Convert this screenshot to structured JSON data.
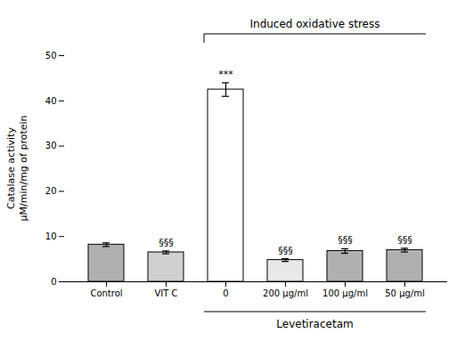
{
  "chart_data": {
    "type": "bar",
    "categories": [
      "Control",
      "VIT C",
      "0",
      "200 μg/ml",
      "100 μg/ml",
      "50 μg/ml"
    ],
    "values": [
      8.2,
      6.5,
      42.5,
      4.8,
      6.8,
      7.0
    ],
    "errors": [
      0.4,
      0.3,
      1.5,
      0.3,
      0.5,
      0.4
    ],
    "colors": [
      "#b0b0b0",
      "#d0d0d0",
      "#ffffff",
      "#e8e8e8",
      "#b0b0b0",
      "#b0b0b0"
    ],
    "ylabel": "Catalase activity\nμM/min/mg of protein",
    "ylim": [
      0,
      50
    ],
    "yticks": [
      0,
      10,
      20,
      30,
      40,
      50
    ],
    "grid": false,
    "annotations": [
      {
        "text": "***",
        "categories": [
          "0"
        ]
      },
      {
        "text": "§§§",
        "categories": [
          "VIT C"
        ]
      },
      {
        "text": "§§§",
        "categories": [
          "200 μg/ml"
        ]
      },
      {
        "text": "§§§",
        "categories": [
          "100 μg/ml"
        ]
      },
      {
        "text": "§§§",
        "categories": [
          "50 μg/ml"
        ]
      },
      {
        "text": "Levetiracetam",
        "categories": [
          "0",
          "50 μg/ml"
        ],
        "position": "below"
      },
      {
        "text": "Induced oxidative stress",
        "categories": [
          "0",
          "50 μg/ml"
        ],
        "position": "above"
      }
    ]
  }
}
